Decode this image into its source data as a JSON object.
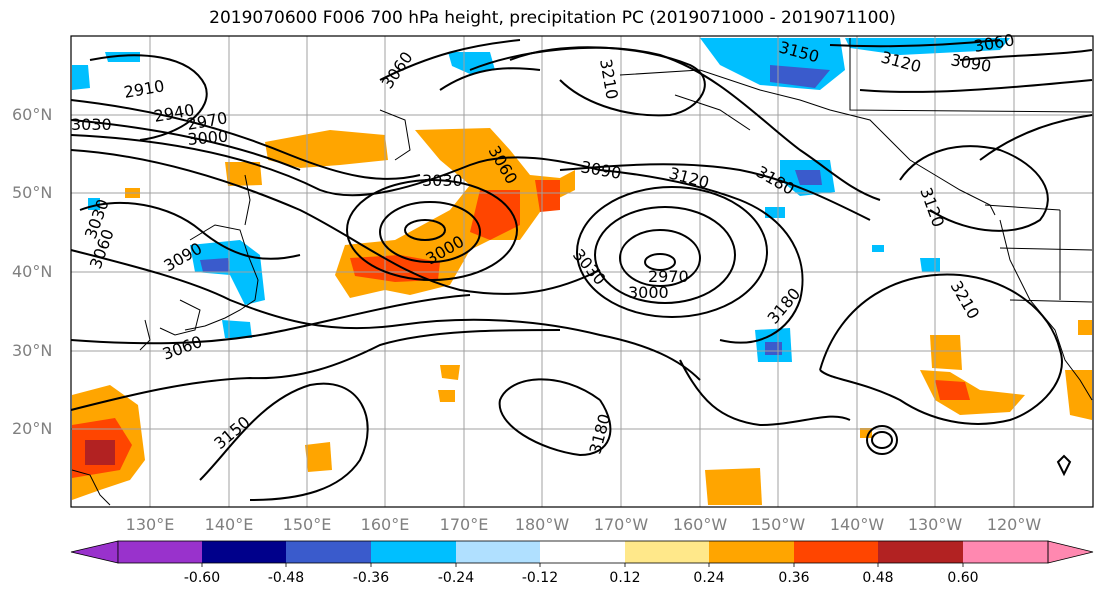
{
  "title": "2019070600 F006 700 hPa height, precipitation PC (2019071000 - 2019071100)",
  "lat_labels": [
    "60°N",
    "50°N",
    "40°N",
    "30°N",
    "20°N"
  ],
  "lon_labels": [
    "130°E",
    "140°E",
    "150°E",
    "160°E",
    "170°E",
    "180°W",
    "170°W",
    "160°W",
    "150°W",
    "140°W",
    "130°W",
    "120°W"
  ],
  "colorbar": {
    "ticks": [
      "-0.60",
      "-0.48",
      "-0.36",
      "-0.24",
      "-0.12",
      "0.12",
      "0.24",
      "0.36",
      "0.48",
      "0.60"
    ],
    "colors": [
      "#9932cc",
      "#00008b",
      "#3a5bcc",
      "#00bfff",
      "#b0e0ff",
      "#ffffff",
      "#ffe88a",
      "#ffa500",
      "#ff4500",
      "#b22222",
      "#ff88b0"
    ]
  },
  "contour_labels": [
    "2910",
    "2940",
    "2970",
    "3000",
    "3030",
    "3060",
    "3090",
    "3120",
    "3150",
    "3180",
    "3210"
  ],
  "contour_label_instances": [
    {
      "text": "2910",
      "rot": -10
    },
    {
      "text": "2940",
      "rot": -10
    },
    {
      "text": "2970",
      "rot": -10
    },
    {
      "text": "3000",
      "rot": -5
    },
    {
      "text": "3030",
      "rot": 0
    },
    {
      "text": "3000",
      "rot": -30
    },
    {
      "text": "3060",
      "rot": 45
    },
    {
      "text": "3060",
      "rot": -60
    },
    {
      "text": "3090",
      "rot": 10
    },
    {
      "text": "3120",
      "rot": 15
    },
    {
      "text": "3180",
      "rot": 30
    },
    {
      "text": "3150",
      "rot": 15
    },
    {
      "text": "3120",
      "rot": 15
    },
    {
      "text": "3090",
      "rot": 10
    },
    {
      "text": "3060",
      "rot": -10
    },
    {
      "text": "3210",
      "rot": 80
    },
    {
      "text": "3030",
      "rot": 50
    },
    {
      "text": "3000",
      "rot": 0
    },
    {
      "text": "2970",
      "rot": 0
    },
    {
      "text": "3180",
      "rot": -50
    },
    {
      "text": "3120",
      "rot": 70
    },
    {
      "text": "3210",
      "rot": 60
    },
    {
      "text": "3090",
      "rot": -30
    },
    {
      "text": "3060",
      "rot": -20
    },
    {
      "text": "3030",
      "rot": 0
    },
    {
      "text": "3060",
      "rot": -70
    },
    {
      "text": "3150",
      "rot": -40
    },
    {
      "text": "3180",
      "rot": -75
    },
    {
      "text": "3030",
      "rot": 0
    }
  ]
}
